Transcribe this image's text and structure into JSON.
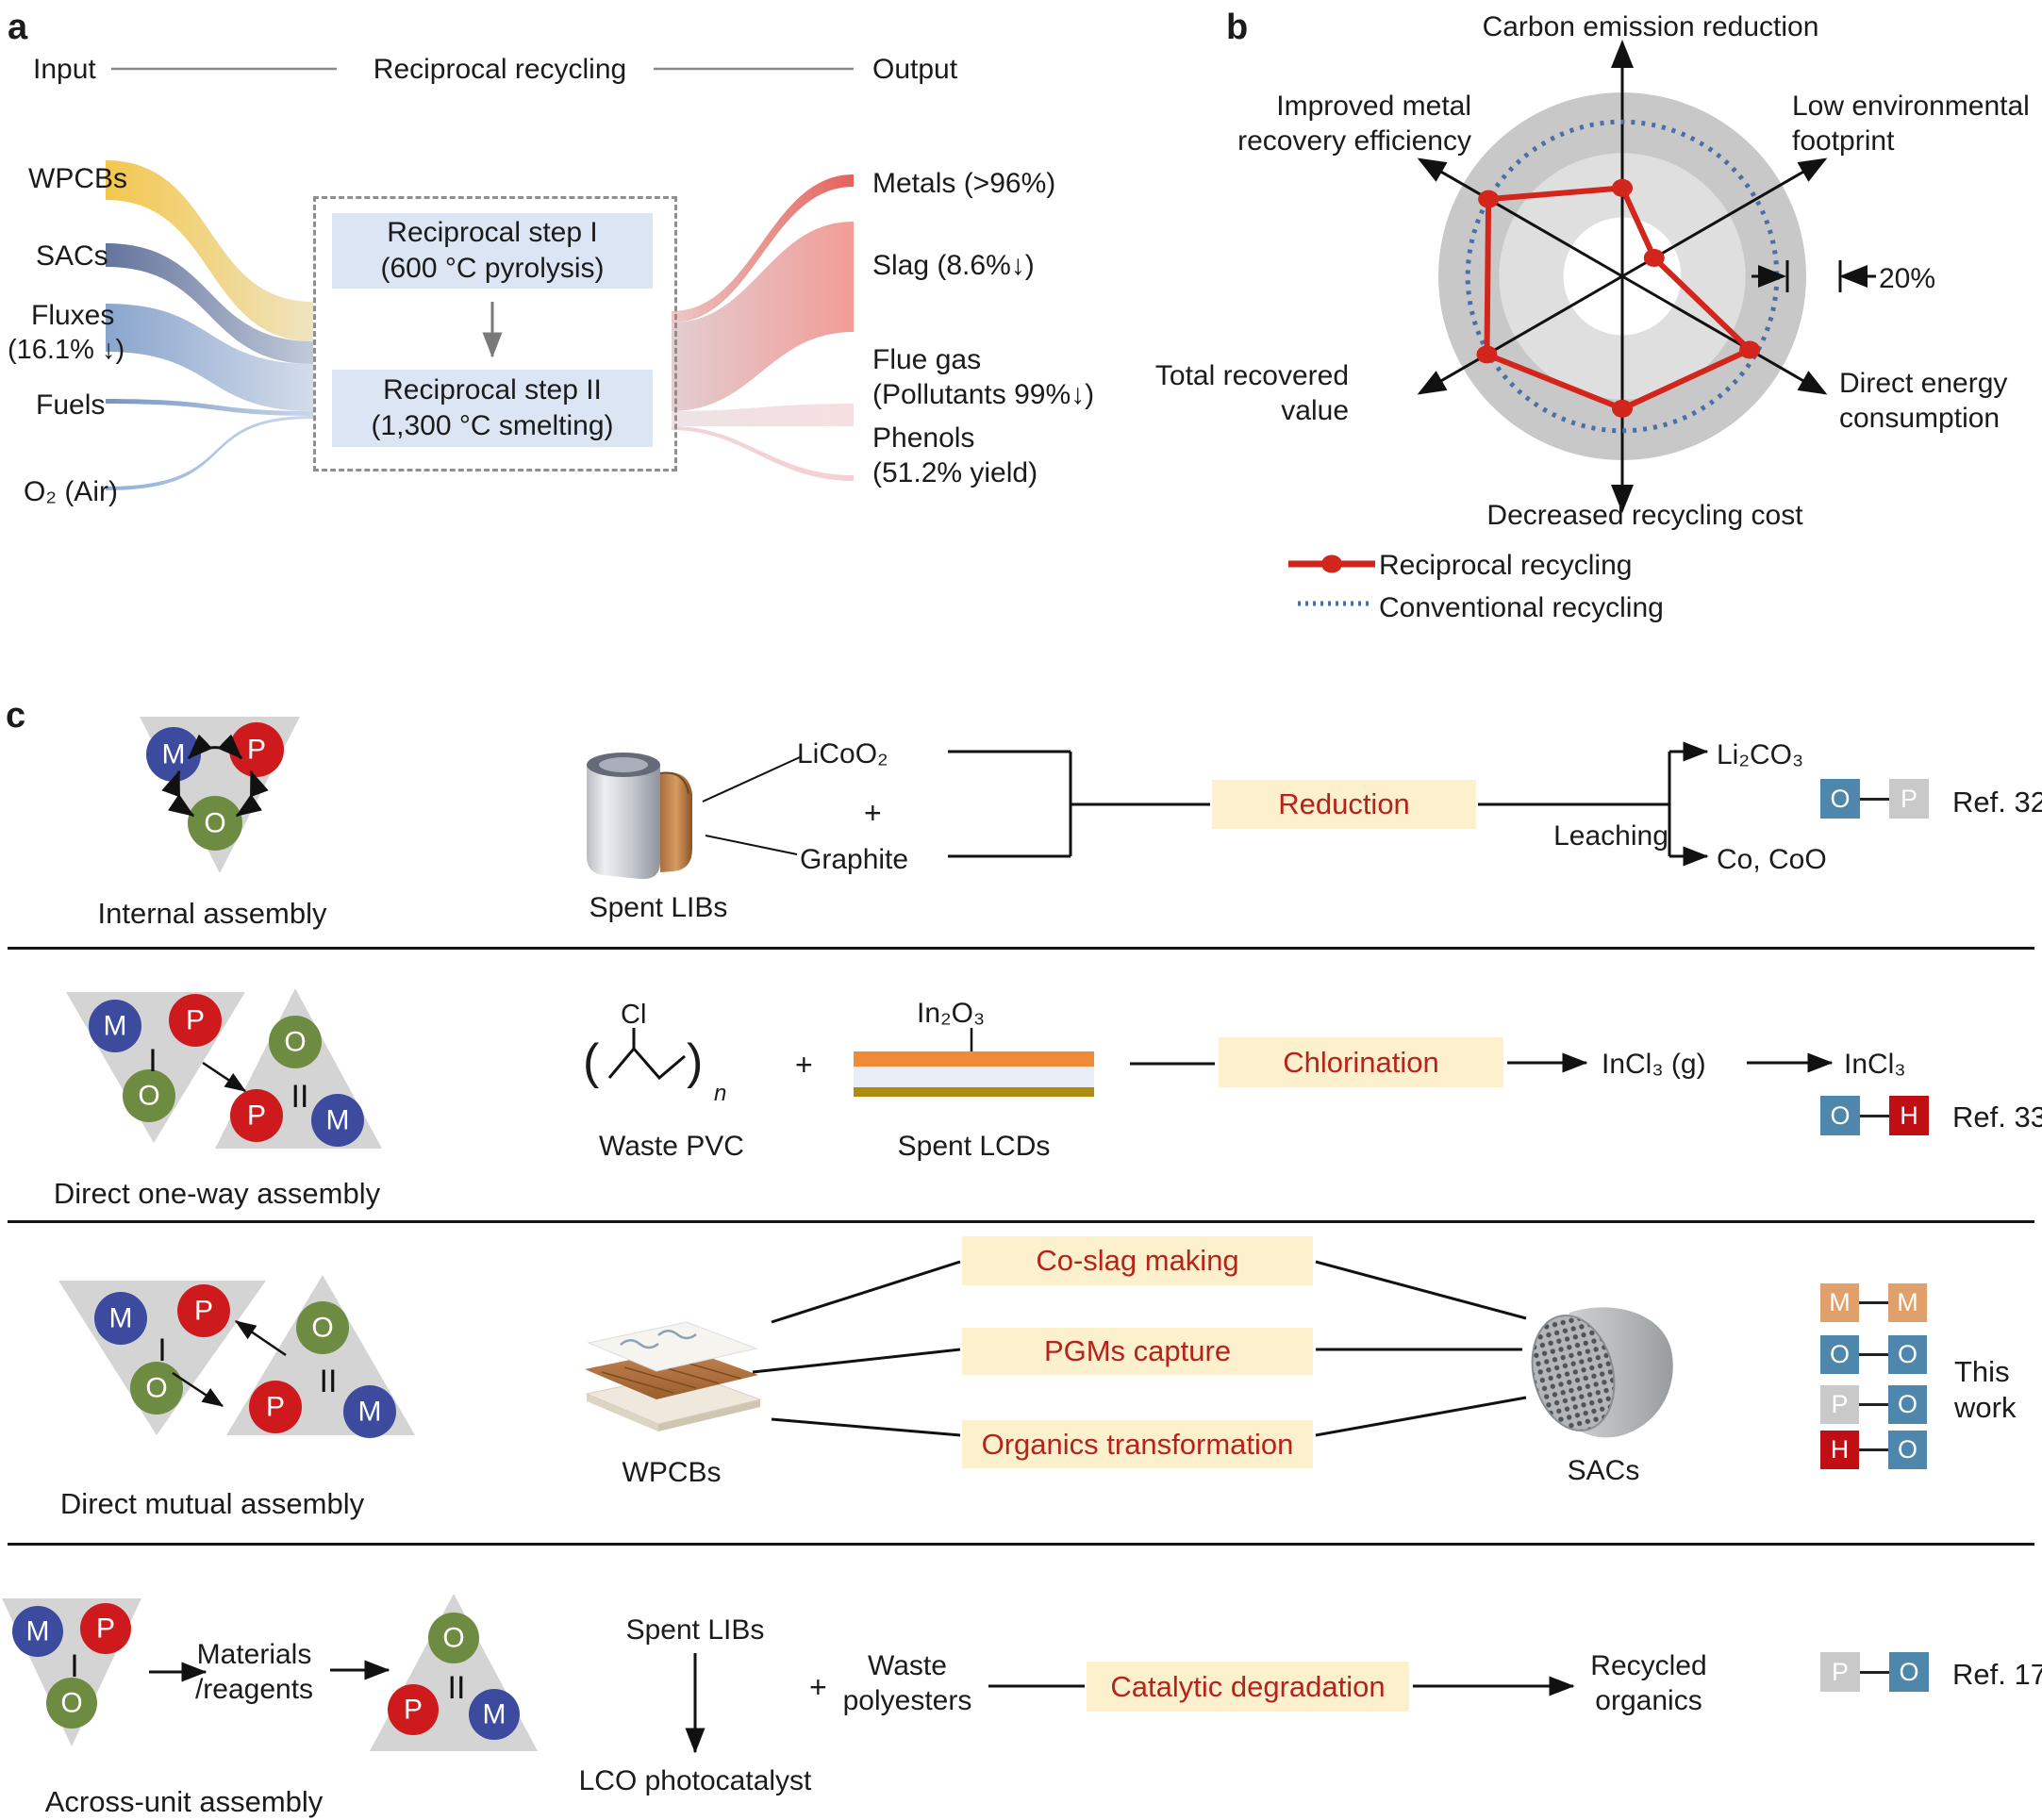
{
  "colors": {
    "accent_red": "#d2251c",
    "dotted_blue": "#4a6fa8",
    "ring_outer": "#c8c8c8",
    "ring_mid": "#dfdfdf",
    "box_blue": "#dbe5f3",
    "process_box_bg": "#fdf0cd",
    "process_text": "#b6231c",
    "triangle_gray": "#d4d4d4",
    "node_m_blue": "#3c4b9e",
    "node_p_red": "#cf1a1d",
    "node_o_green": "#6d8c42",
    "sq_blue": "#4f86ac",
    "sq_gray": "#c9c9c9",
    "sq_red": "#bf0f15",
    "sq_orange": "#dfa06b"
  },
  "panel_a": {
    "label": "a",
    "header": {
      "input": "Input",
      "title": "Reciprocal recycling",
      "output": "Output"
    },
    "inputs": [
      {
        "label": "WPCBs"
      },
      {
        "label": "SACs"
      },
      {
        "label": "Fluxes",
        "sub": "(16.1% ↓)"
      },
      {
        "label": "Fuels"
      },
      {
        "label": "O₂ (Air)"
      }
    ],
    "steps": [
      {
        "line1": "Reciprocal step I",
        "line2": "(600 °C pyrolysis)"
      },
      {
        "line1": "Reciprocal step II",
        "line2": "(1,300 °C smelting)"
      }
    ],
    "outputs": [
      {
        "label": "Metals (>96%)"
      },
      {
        "label": "Slag (8.6%↓)"
      },
      {
        "label": "Flue gas",
        "sub": "(Pollutants 99%↓)"
      },
      {
        "label": "Phenols",
        "sub": "(51.2% yield)"
      }
    ]
  },
  "panel_b": {
    "label": "b",
    "scale_label": "20%"
  },
  "chart_data": {
    "type": "radar",
    "axes": [
      "Carbon emission reduction",
      "Low environmental footprint",
      "Direct energy consumption",
      "Decreased recycling cost",
      "Total recovered value",
      "Improved metal recovery efficiency"
    ],
    "series": [
      {
        "name": "Reciprocal recycling",
        "style": "solid red line with round markers",
        "values_pct": [
          48,
          20,
          80,
          72,
          85,
          84
        ]
      },
      {
        "name": "Conventional recycling",
        "style": "dotted blue baseline circle",
        "values_pct": [
          84,
          84,
          84,
          84,
          84,
          84
        ]
      }
    ],
    "rings_pct": [
      32,
      67,
      100
    ],
    "scale_marker_label": "20%",
    "legend_position": "bottom-left"
  },
  "panel_c": {
    "label": "c",
    "node_letters": {
      "m": "M",
      "p": "P",
      "o": "O"
    },
    "unit_labels": {
      "one": "I",
      "two": "II"
    },
    "plus": "+",
    "rows": [
      {
        "assembly": "Internal assembly",
        "source": "Spent LIBs",
        "input1": "LiCoO₂",
        "input2": "Graphite",
        "process": "Reduction",
        "mid_step": "Leaching",
        "product1": "Li₂CO₃",
        "product2": "Co, CoO",
        "ref": "Ref. 32",
        "pair": [
          {
            "letter": "O",
            "color": "blue"
          },
          {
            "letter": "P",
            "color": "gray"
          }
        ]
      },
      {
        "assembly": "Direct one-way assembly",
        "cl": "Cl",
        "n": "n",
        "item1": "Waste PVC",
        "item2": "Spent LCDs",
        "layer_label": "In₂O₃",
        "process": "Chlorination",
        "product1": "InCl₃ (g)",
        "product2": "InCl₃",
        "ref": "Ref. 33",
        "pair": [
          {
            "letter": "O",
            "color": "blue"
          },
          {
            "letter": "H",
            "color": "red"
          }
        ]
      },
      {
        "assembly": "Direct mutual assembly",
        "item1": "WPCBs",
        "item2": "SACs",
        "processes": [
          "Co-slag making",
          "PGMs capture",
          "Organics transformation"
        ],
        "work_label": "This work",
        "pairs": [
          [
            {
              "letter": "M",
              "color": "orange"
            },
            {
              "letter": "M",
              "color": "orange"
            }
          ],
          [
            {
              "letter": "O",
              "color": "blue"
            },
            {
              "letter": "O",
              "color": "blue"
            }
          ],
          [
            {
              "letter": "P",
              "color": "gray"
            },
            {
              "letter": "O",
              "color": "blue"
            }
          ],
          [
            {
              "letter": "H",
              "color": "red"
            },
            {
              "letter": "O",
              "color": "blue"
            }
          ]
        ]
      },
      {
        "assembly": "Across-unit assembly",
        "arrow_label": "Materials /reagents",
        "source": "Spent LIBs",
        "derived": "LCO photocatalyst",
        "co_input": "Waste polyesters",
        "process": "Catalytic degradation",
        "product": "Recycled organics",
        "ref": "Ref. 17",
        "pair": [
          {
            "letter": "P",
            "color": "gray"
          },
          {
            "letter": "O",
            "color": "blue"
          }
        ]
      }
    ]
  }
}
